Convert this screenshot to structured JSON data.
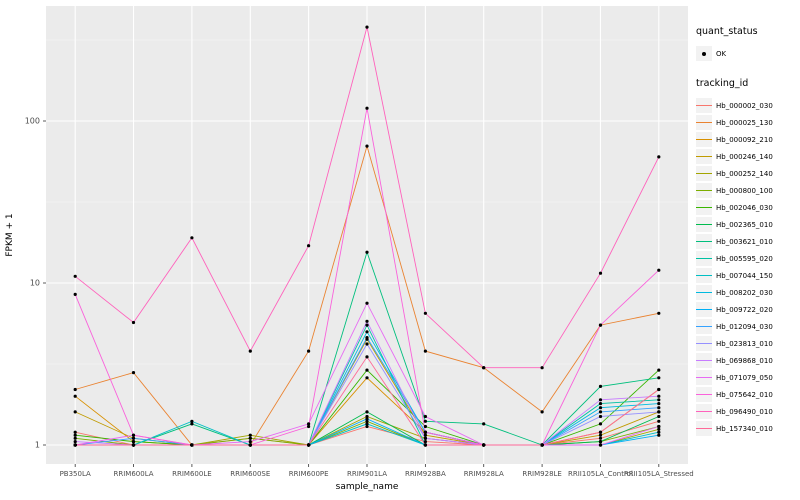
{
  "figure": {
    "panel_bg": "#EBEBEB",
    "grid_major": "#FFFFFF",
    "grid_minor": "#F5F5F5",
    "axis_text_color": "#4D4D4D",
    "axis_title_color": "#000000",
    "tick_color": "#333333",
    "point_color": "#000000",
    "legend_key_bg": "#F2F2F2"
  },
  "chart_data": {
    "type": "line",
    "title": "",
    "xlabel": "sample_name",
    "ylabel": "FPKM + 1",
    "y_scale": "log10",
    "y_ticks": [
      1,
      10,
      100
    ],
    "y_minor_ticks": [
      3.162,
      31.62,
      316.2
    ],
    "ylim": [
      0.9,
      500
    ],
    "grid": true,
    "legend_position": "right",
    "point_legend": {
      "title": "quant_status",
      "label": "OK"
    },
    "series_legend_title": "tracking_id",
    "categories": [
      "PB350LA",
      "RRIM600LA",
      "RRIM600LE",
      "RRIM600SE",
      "RRIM600PE",
      "RRIM901LA",
      "RRIM928BA",
      "RRIM928LA",
      "RRIM928LE",
      "RRII105LA_Control",
      "RRII105LA_Stressed"
    ],
    "series": [
      {
        "name": "Hb_000002_030",
        "color": "#F8766D",
        "values": [
          1.2,
          1.0,
          1.0,
          1.1,
          1.0,
          1.3,
          1.05,
          1.0,
          1.0,
          1.1,
          1.4
        ]
      },
      {
        "name": "Hb_000025_130",
        "color": "#EA8331",
        "values": [
          2.2,
          2.8,
          1.0,
          1.0,
          3.8,
          70,
          3.8,
          3.0,
          1.6,
          5.5,
          6.5
        ]
      },
      {
        "name": "Hb_000092_210",
        "color": "#D89000",
        "values": [
          2.0,
          1.05,
          1.0,
          1.0,
          1.0,
          2.6,
          1.2,
          1.0,
          1.0,
          1.2,
          2.2
        ]
      },
      {
        "name": "Hb_000246_140",
        "color": "#C09B00",
        "values": [
          1.6,
          1.1,
          1.0,
          1.0,
          1.0,
          4.5,
          1.15,
          1.0,
          1.0,
          1.15,
          1.6
        ]
      },
      {
        "name": "Hb_000252_140",
        "color": "#A3A500",
        "values": [
          1.0,
          1.0,
          1.0,
          1.15,
          1.0,
          1.5,
          1.1,
          1.0,
          1.0,
          1.0,
          1.25
        ]
      },
      {
        "name": "Hb_000800_100",
        "color": "#7CAE00",
        "values": [
          1.1,
          1.0,
          1.0,
          1.1,
          1.0,
          1.4,
          1.0,
          1.0,
          1.0,
          1.05,
          1.3
        ]
      },
      {
        "name": "Hb_002046_030",
        "color": "#39B600",
        "values": [
          1.15,
          1.05,
          1.0,
          1.0,
          1.0,
          2.9,
          1.3,
          1.0,
          1.0,
          1.35,
          2.9
        ]
      },
      {
        "name": "Hb_002365_010",
        "color": "#00BB4E",
        "values": [
          1.0,
          1.0,
          1.0,
          1.0,
          1.0,
          1.6,
          1.0,
          1.0,
          1.0,
          1.05,
          1.5
        ]
      },
      {
        "name": "Hb_003621_010",
        "color": "#00BF7D",
        "values": [
          1.0,
          1.0,
          1.35,
          1.0,
          1.0,
          15.5,
          1.4,
          1.35,
          1.0,
          2.3,
          2.6
        ]
      },
      {
        "name": "Hb_005595_020",
        "color": "#00C1A3",
        "values": [
          1.0,
          1.0,
          1.0,
          1.0,
          1.0,
          5.5,
          1.0,
          1.0,
          1.0,
          1.8,
          1.9
        ]
      },
      {
        "name": "Hb_007044_150",
        "color": "#00BFC4",
        "values": [
          1.0,
          1.0,
          1.4,
          1.0,
          1.0,
          1.35,
          1.0,
          1.0,
          1.0,
          1.0,
          1.2
        ]
      },
      {
        "name": "Hb_008202_030",
        "color": "#00BAE0",
        "values": [
          1.0,
          1.0,
          1.0,
          1.0,
          1.0,
          5.0,
          1.2,
          1.0,
          1.0,
          1.7,
          1.8
        ]
      },
      {
        "name": "Hb_009722_020",
        "color": "#00B0F6",
        "values": [
          1.0,
          1.0,
          1.0,
          1.0,
          1.0,
          1.45,
          1.0,
          1.0,
          1.0,
          1.0,
          1.15
        ]
      },
      {
        "name": "Hb_012094_030",
        "color": "#35A2FF",
        "values": [
          1.0,
          1.1,
          1.0,
          1.0,
          1.0,
          4.6,
          1.2,
          1.0,
          1.0,
          1.6,
          1.7
        ]
      },
      {
        "name": "Hb_023813_010",
        "color": "#9590FF",
        "values": [
          1.0,
          1.0,
          1.0,
          1.0,
          1.0,
          4.2,
          1.1,
          1.0,
          1.0,
          1.5,
          1.6
        ]
      },
      {
        "name": "Hb_069868_010",
        "color": "#C77CFF",
        "values": [
          1.05,
          1.0,
          1.0,
          1.0,
          1.0,
          5.8,
          1.1,
          1.0,
          1.0,
          1.9,
          2.0
        ]
      },
      {
        "name": "Hb_071079_050",
        "color": "#E76BF3",
        "values": [
          1.0,
          1.15,
          1.0,
          1.05,
          1.35,
          7.5,
          1.5,
          1.0,
          1.0,
          1.0,
          1.3
        ]
      },
      {
        "name": "Hb_075642_010",
        "color": "#FA62DB",
        "values": [
          8.5,
          1.15,
          1.0,
          1.0,
          1.3,
          120,
          1.2,
          1.0,
          1.0,
          5.5,
          12
        ]
      },
      {
        "name": "Hb_096490_010",
        "color": "#FF62BC",
        "values": [
          11,
          5.7,
          19,
          3.8,
          17,
          380,
          6.5,
          3.0,
          3.0,
          11.5,
          60
        ]
      },
      {
        "name": "Hb_157340_010",
        "color": "#FF6A98",
        "values": [
          1.0,
          1.0,
          1.0,
          1.0,
          1.0,
          3.5,
          1.0,
          1.0,
          1.0,
          1.2,
          2.2
        ]
      }
    ]
  }
}
